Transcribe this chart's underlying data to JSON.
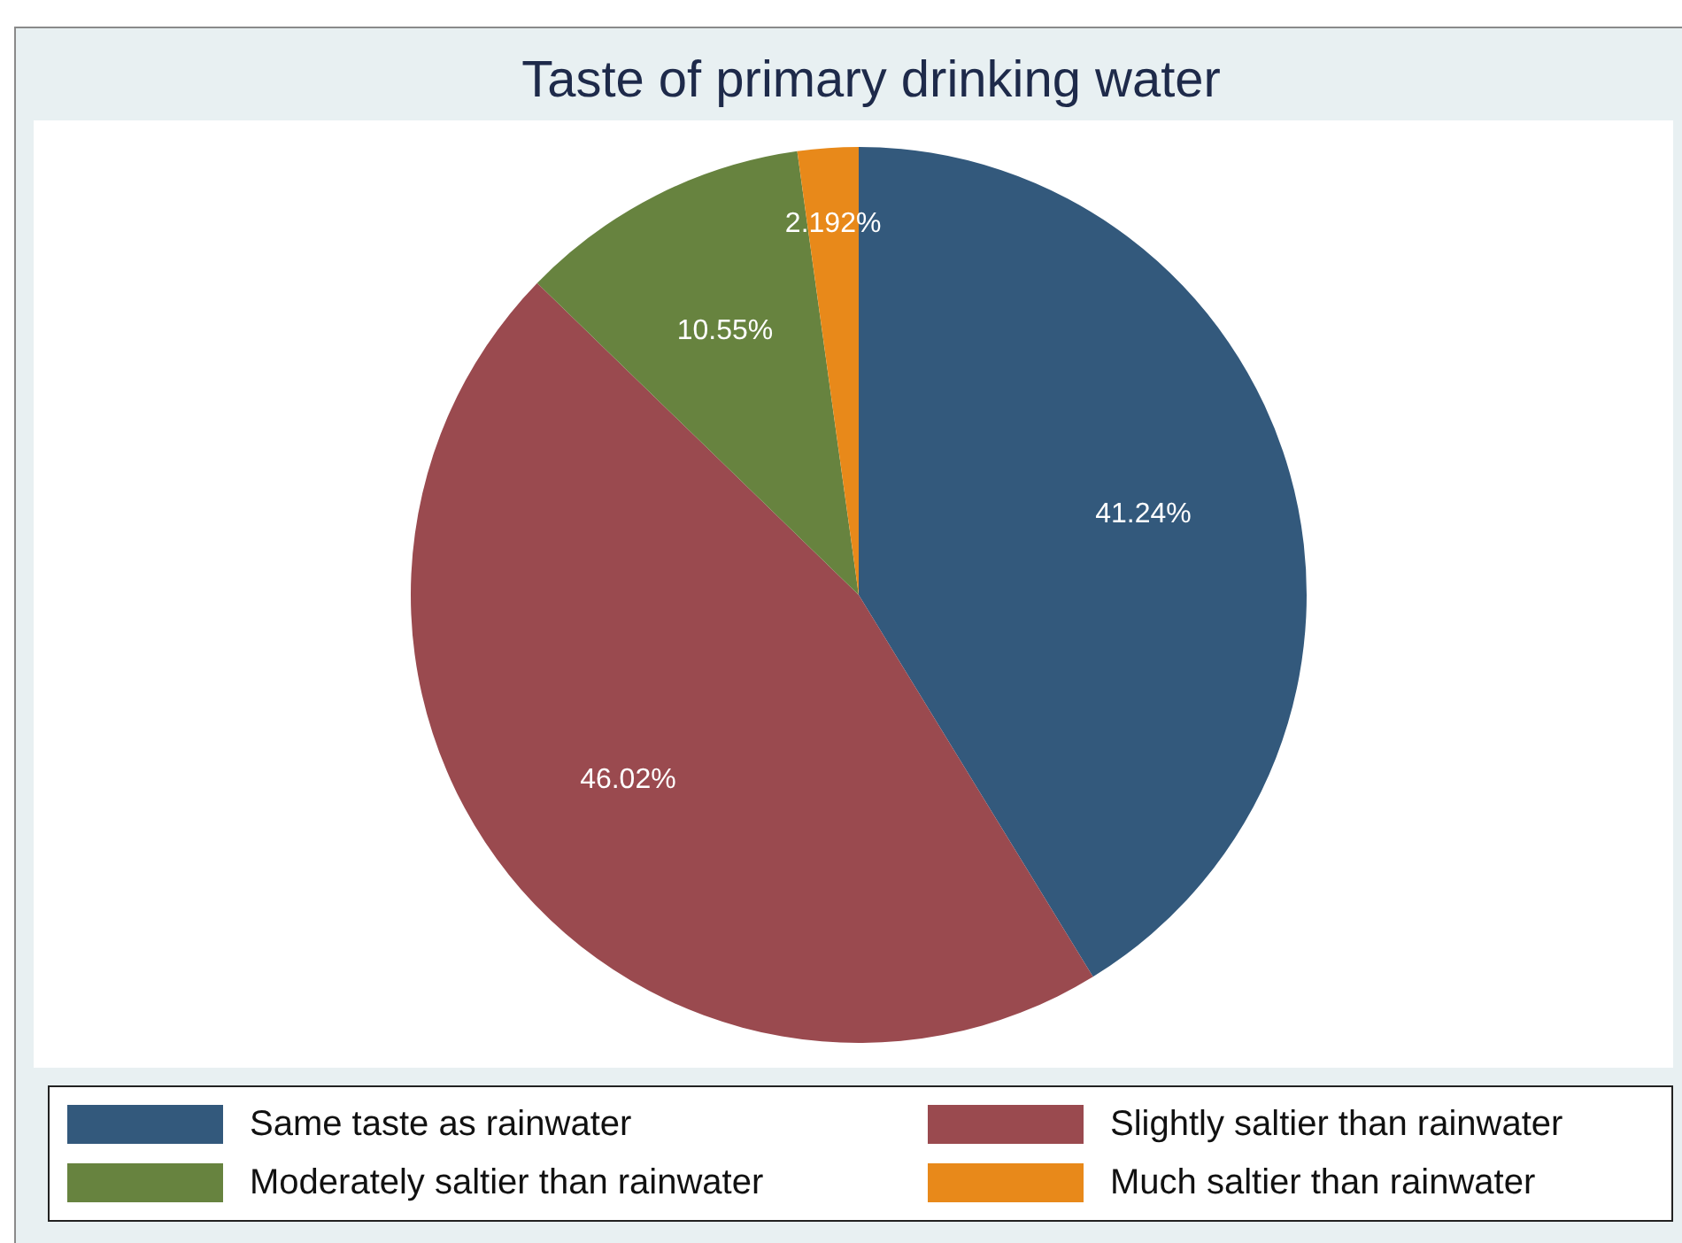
{
  "chart_data": {
    "type": "pie",
    "title": "Taste of primary drinking water",
    "categories": [
      "Same taste as rainwater",
      "Slightly saltier than rainwater",
      "Moderately saltier than rainwater",
      "Much saltier than rainwater"
    ],
    "values": [
      41.24,
      46.02,
      10.55,
      2.192
    ],
    "value_labels": [
      "41.24%",
      "46.02%",
      "10.55%",
      "2.192%"
    ],
    "colors": [
      "#33597c",
      "#9a4a4f",
      "#67833f",
      "#e8891a"
    ],
    "legend": "bottom"
  }
}
